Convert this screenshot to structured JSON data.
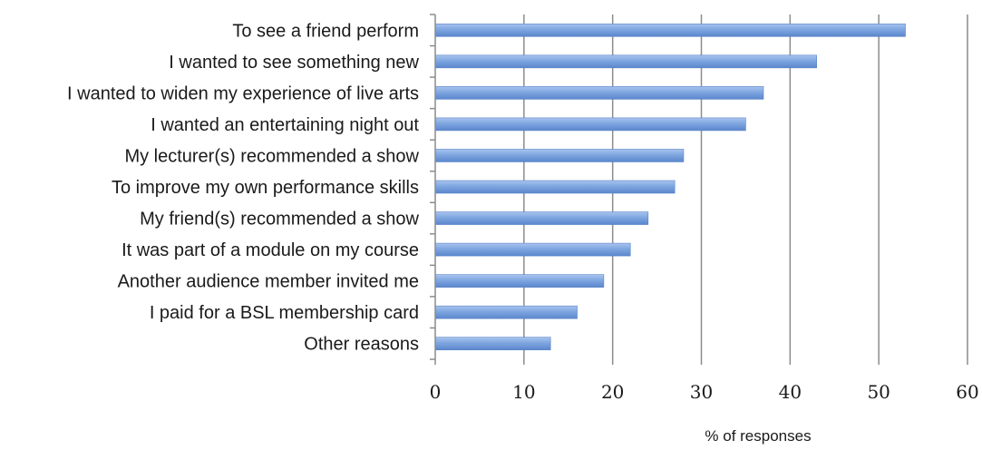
{
  "chart_data": {
    "type": "bar",
    "orientation": "horizontal",
    "categories": [
      "To see a friend perform",
      "I wanted to see something new",
      "I wanted to widen my experience of live arts",
      "I wanted an entertaining night out",
      "My lecturer(s) recommended a show",
      "To improve my own performance skills",
      "My friend(s) recommended a show",
      "It was part of a module on my course",
      "Another audience member invited me",
      "I paid for a BSL membership card",
      "Other reasons"
    ],
    "values": [
      53,
      43,
      37,
      35,
      28,
      27,
      24,
      22,
      19,
      16,
      13
    ],
    "title": "",
    "xlabel": "% of responses",
    "ylabel": "",
    "xlim": [
      0,
      60
    ],
    "xticks": [
      "0",
      "10",
      "20",
      "30",
      "40",
      "50",
      "60"
    ],
    "grid": true,
    "legend": "none",
    "bar_color": "#7ea6e0"
  }
}
